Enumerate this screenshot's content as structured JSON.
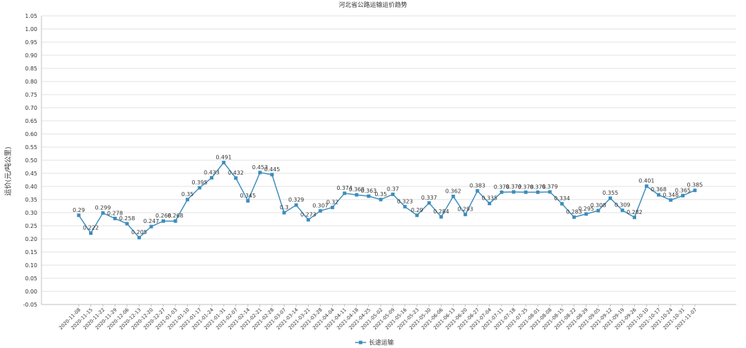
{
  "chart_data": {
    "type": "line",
    "title": "河北省公路运输运价趋势",
    "xlabel": "",
    "ylabel": "运价(元/吨公里)",
    "ylim": [
      -0.05,
      1.05
    ],
    "ytick_step": 0.05,
    "y_ticks": [
      "-0.05",
      "0.00",
      "0.05",
      "0.10",
      "0.15",
      "0.20",
      "0.25",
      "0.30",
      "0.35",
      "0.40",
      "0.45",
      "0.50",
      "0.55",
      "0.60",
      "0.65",
      "0.70",
      "0.75",
      "0.80",
      "0.85",
      "0.90",
      "0.95",
      "1.00",
      "1.05"
    ],
    "grid": true,
    "legend_position": "bottom",
    "colors": {
      "series": "#3c8dbc",
      "grid": "#d9d9d9",
      "axis": "#bfbfbf"
    },
    "categories": [
      "2020-11-08",
      "2020-11-15",
      "2020-11-22",
      "2020-11-29",
      "2020-12-06",
      "2020-12-13",
      "2020-12-20",
      "2020-12-27",
      "2021-01-03",
      "2021-01-10",
      "2021-01-17",
      "2021-01-24",
      "2021-01-31",
      "2021-02-07",
      "2021-02-14",
      "2021-02-21",
      "2021-02-28",
      "2021-03-07",
      "2021-03-14",
      "2021-03-21",
      "2021-03-28",
      "2021-04-04",
      "2021-04-11",
      "2021-04-18",
      "2021-04-25",
      "2021-05-02",
      "2021-05-09",
      "2021-05-16",
      "2021-05-23",
      "2021-05-30",
      "2021-06-06",
      "2021-06-13",
      "2021-06-20",
      "2021-06-27",
      "2021-07-04",
      "2021-07-11",
      "2021-07-18",
      "2021-07-25",
      "2021-08-01",
      "2021-08-08",
      "2021-08-15",
      "2021-08-22",
      "2021-08-29",
      "2021-09-05",
      "2021-09-12",
      "2021-09-19",
      "2021-09-26",
      "2021-10-10",
      "2021-10-17",
      "2021-10-24",
      "2021-10-31",
      "2021-11-07"
    ],
    "series": [
      {
        "name": "长途运输",
        "values": [
          0.29,
          0.222,
          0.299,
          0.278,
          0.258,
          0.205,
          0.247,
          0.268,
          0.268,
          0.35,
          0.395,
          0.433,
          0.491,
          0.432,
          0.345,
          0.453,
          0.445,
          0.3,
          0.329,
          0.273,
          0.307,
          0.32,
          0.374,
          0.368,
          0.363,
          0.35,
          0.37,
          0.323,
          0.29,
          0.337,
          0.284,
          0.362,
          0.293,
          0.383,
          0.335,
          0.378,
          0.379,
          0.378,
          0.378,
          0.379,
          0.334,
          0.283,
          0.295,
          0.308,
          0.355,
          0.309,
          0.282,
          0.401,
          0.368,
          0.348,
          0.365,
          0.385
        ],
        "labels": [
          "0.29",
          "0.222",
          "0.299",
          "0.278",
          "0.258",
          "0.205",
          "0.247",
          "0.268",
          "0.268",
          "0.35",
          "0.395",
          "0.433",
          "0.491",
          "0.432",
          "0.345",
          "0.453",
          "0.445",
          "0.3",
          "0.329",
          "0.273",
          "0.307",
          "0.32",
          "0.374",
          "0.368",
          "0.363",
          "0.35",
          "0.37",
          "0.323",
          "0.29",
          "0.337",
          "0.284",
          "0.362",
          "0.293",
          "0.383",
          "0.335",
          "0.378",
          "0.379",
          "0.378",
          "0.378",
          "0.379",
          "0.334",
          "0.283",
          "0.295",
          "0.308",
          "0.355",
          "0.309",
          "0.282",
          "0.401",
          "0.368",
          "0.348",
          "0.365",
          "0.385"
        ]
      }
    ]
  }
}
